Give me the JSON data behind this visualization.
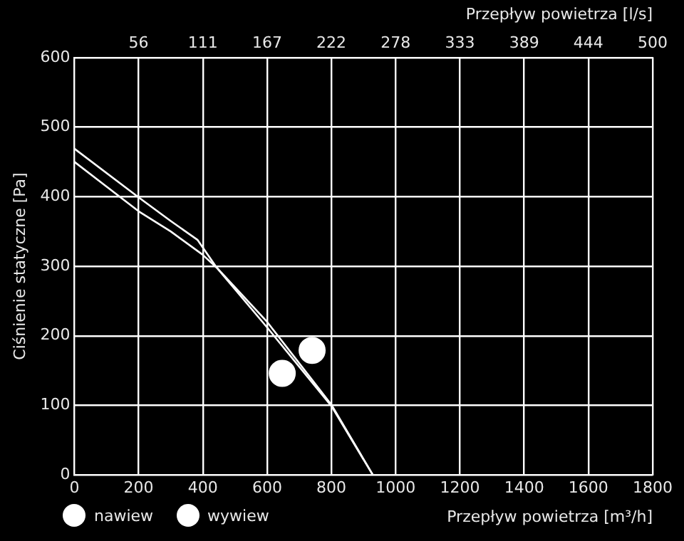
{
  "chart_data": {
    "type": "line",
    "xlabel": "Przepływ powietrza [m³/h]",
    "ylabel": "Ciśnienie statyczne [Pa]",
    "x2label": "Przepływ powietrza [l/s]",
    "xlim": [
      0,
      1800
    ],
    "xticks": [
      0,
      200,
      400,
      600,
      800,
      1000,
      1200,
      1400,
      1600,
      1800
    ],
    "x2lim": [
      0,
      500
    ],
    "x2ticks": [
      {
        "value": 55.56,
        "label": "56"
      },
      {
        "value": 111.11,
        "label": "111"
      },
      {
        "value": 166.67,
        "label": "167"
      },
      {
        "value": 222.22,
        "label": "222"
      },
      {
        "value": 277.78,
        "label": "278"
      },
      {
        "value": 333.33,
        "label": "333"
      },
      {
        "value": 388.89,
        "label": "389"
      },
      {
        "value": 444.44,
        "label": "444"
      },
      500
    ],
    "ylim": [
      0,
      600
    ],
    "yticks": [
      0,
      100,
      200,
      300,
      400,
      500,
      600
    ],
    "grid": true,
    "legend": "bottom left",
    "line_style": "solid",
    "series": [
      {
        "color": "#ffffff",
        "x": [
          0,
          200,
          300,
          383,
          443,
          600,
          800,
          929
        ],
        "values": [
          469,
          399,
          365,
          338,
          298,
          220,
          101,
          0
        ],
        "marker": "none"
      },
      {
        "color": "#ffffff",
        "x": [
          0,
          200,
          300,
          398,
          443,
          600,
          800,
          929
        ],
        "values": [
          450,
          379,
          350,
          317,
          298,
          212,
          99,
          0
        ],
        "marker": "none"
      },
      {
        "type": "scatter",
        "name": "nawiew",
        "color": "#ffffff",
        "x": [
          647
        ],
        "values": [
          146
        ],
        "marker": "circle"
      },
      {
        "type": "scatter",
        "name": "wywiew",
        "color": "#ffffff",
        "x": [
          740
        ],
        "values": [
          179
        ],
        "marker": "circle"
      }
    ]
  }
}
